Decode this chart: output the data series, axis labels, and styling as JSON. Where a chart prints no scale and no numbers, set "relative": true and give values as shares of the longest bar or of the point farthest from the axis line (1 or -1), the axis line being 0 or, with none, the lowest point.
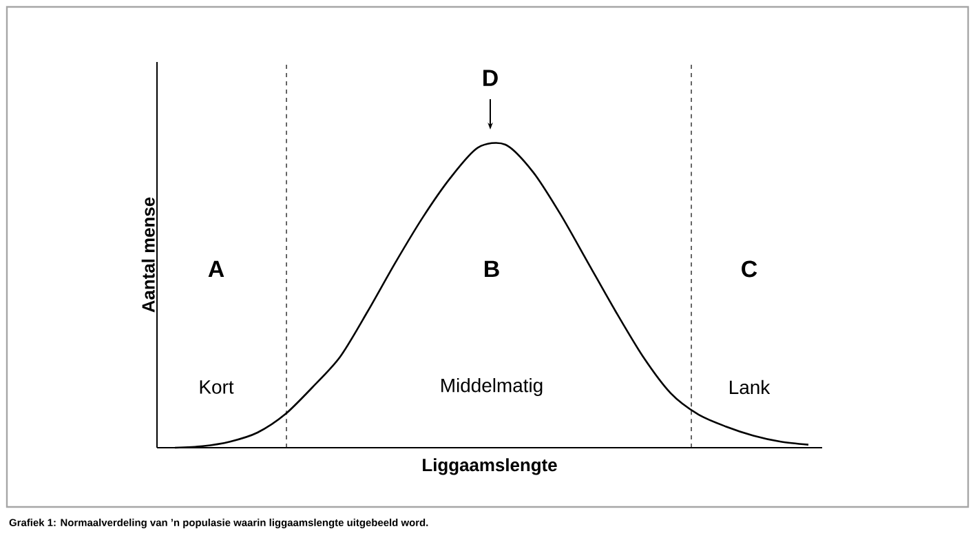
{
  "chart_data": {
    "type": "line",
    "relative": true,
    "categories": [
      null,
      null,
      null,
      null,
      null,
      null,
      null,
      null,
      null,
      null,
      null,
      null,
      null,
      null,
      null,
      null,
      null,
      null,
      null,
      null,
      null,
      null,
      null,
      null
    ],
    "series": [
      {
        "color": "#000000",
        "values": [
          0,
          0.005,
          0.02,
          0.05,
          0.11,
          0.2,
          0.3,
          0.45,
          0.61,
          0.76,
          0.89,
          0.99,
          1.0,
          0.91,
          0.77,
          0.61,
          0.45,
          0.3,
          0.18,
          0.11,
          0.07,
          0.04,
          0.02,
          0.01
        ]
      }
    ],
    "xlabel": "Liggaamslengte",
    "ylabel": "Aantal mense",
    "annotations": [
      "A",
      "B",
      "C",
      "Kort",
      "Middelmatig",
      "Lank",
      "D",
      "Grafiek 1: Normaalverdeling van ’n populasie waarin liggaamslengte uitgebeeld word."
    ],
    "marker": "none",
    "line_style": "solid",
    "tick_labels": false
  }
}
